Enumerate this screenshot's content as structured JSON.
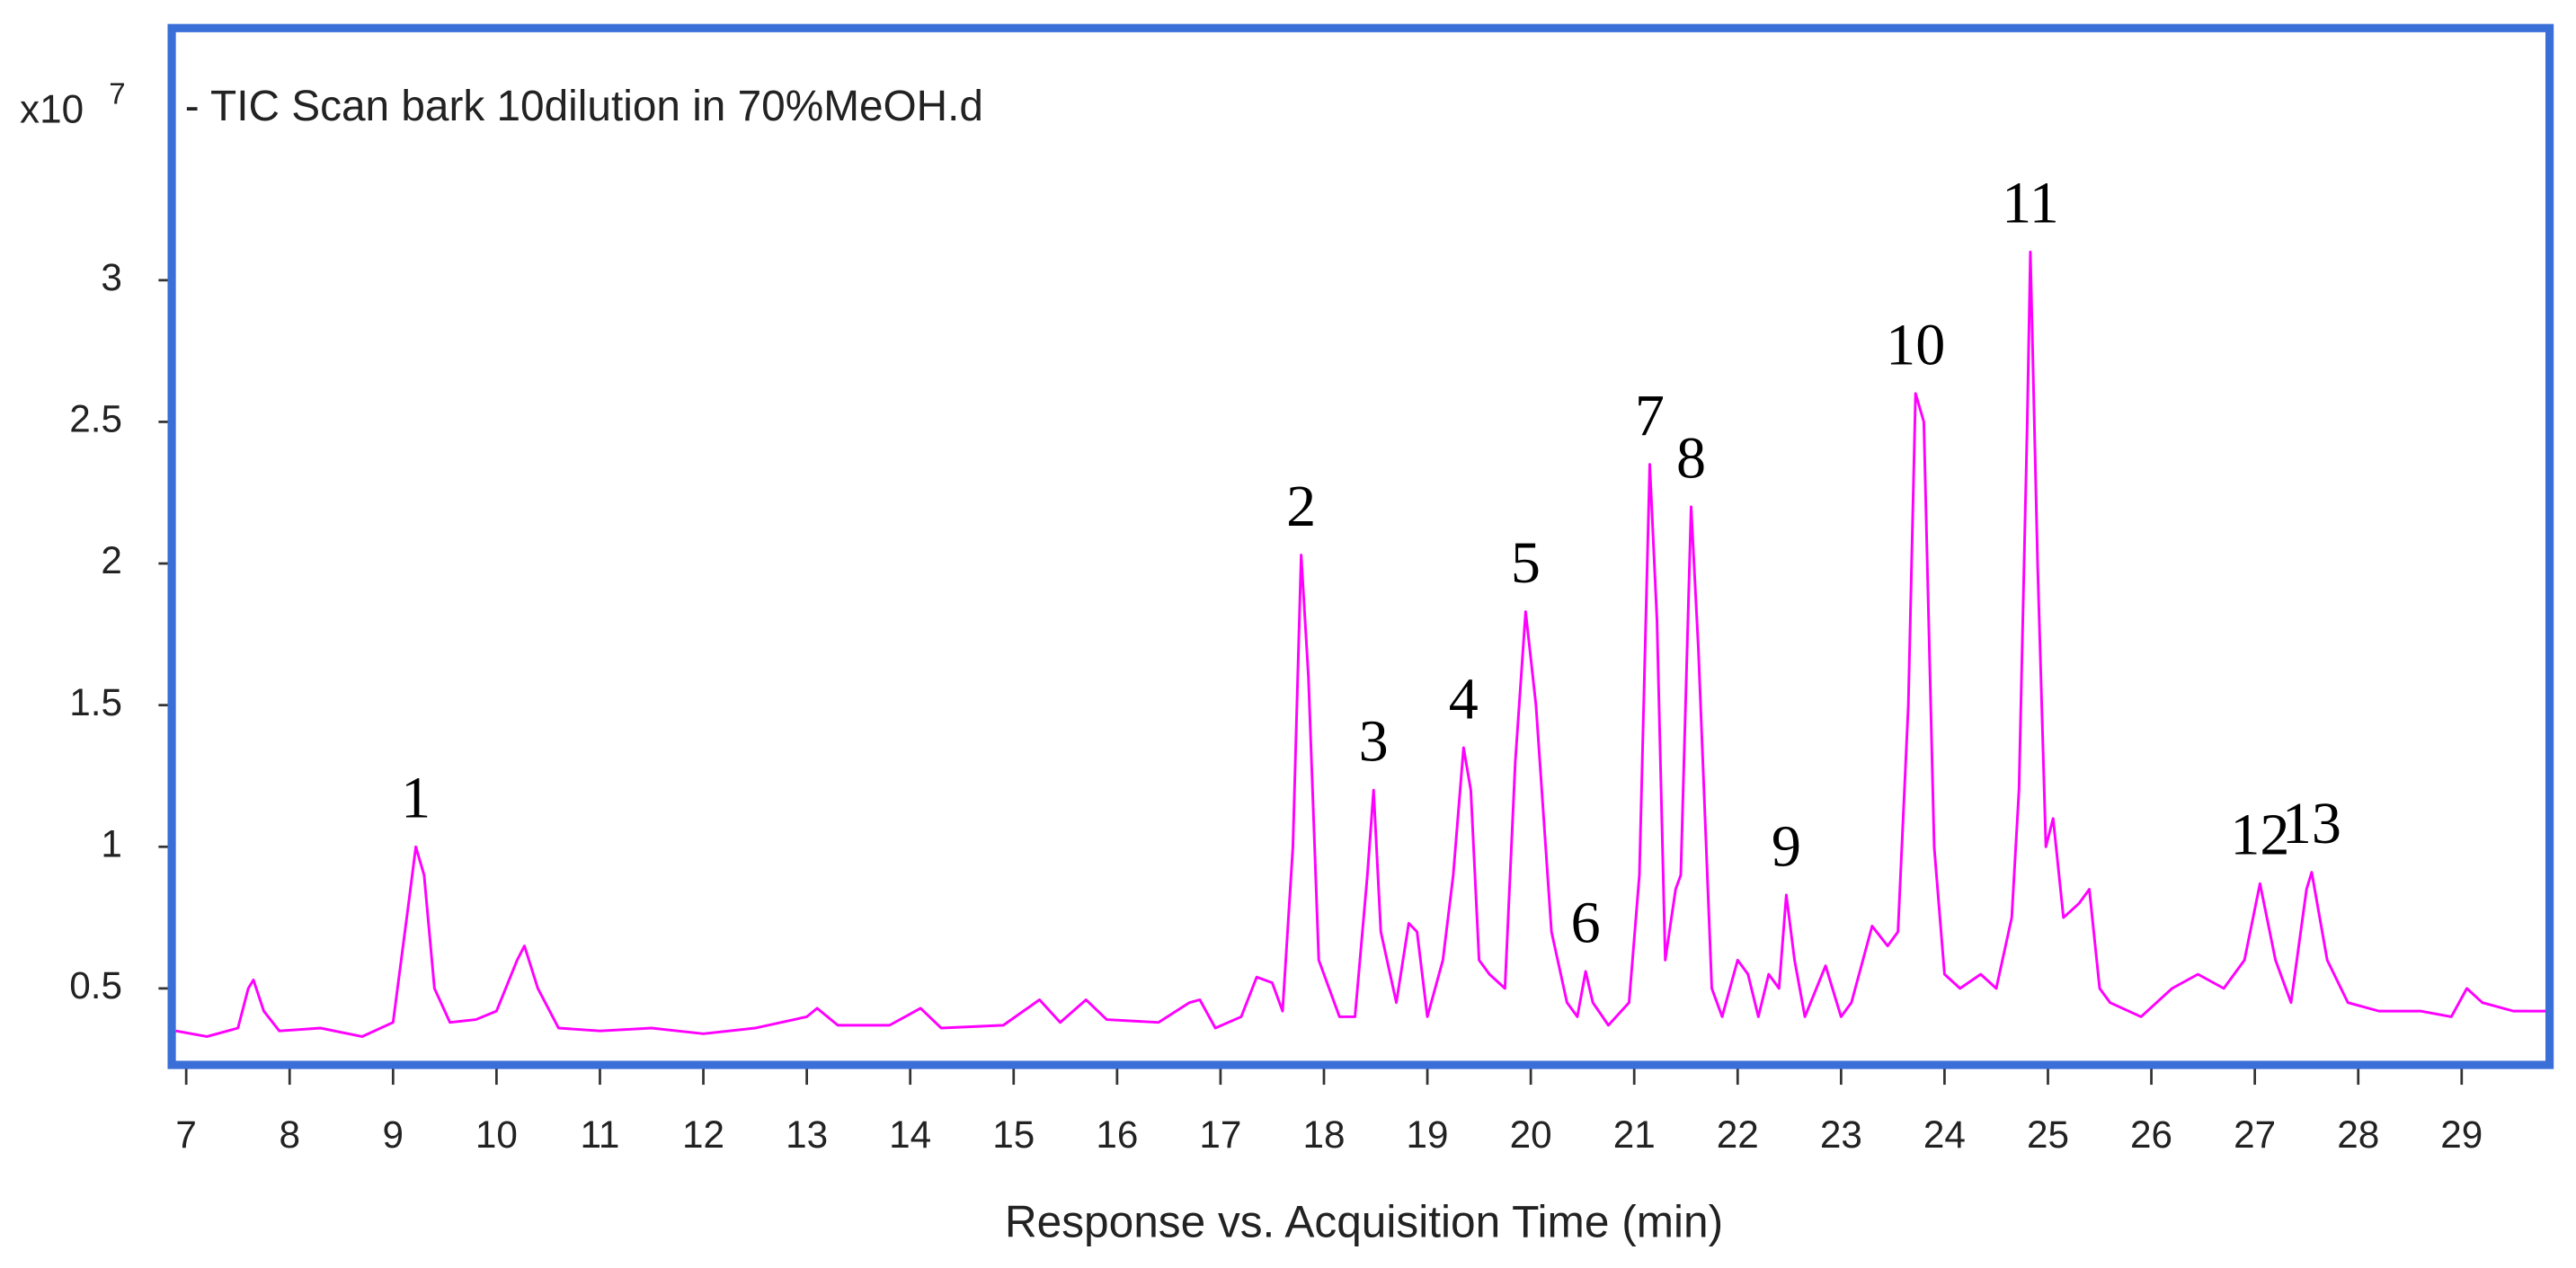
{
  "chart_data": {
    "type": "line",
    "title": "- TIC Scan bark 10dilution in 70%MeOH.d",
    "y_multiplier": {
      "base": "x10",
      "exponent": "7"
    },
    "x_label": "Response vs. Acquisition Time (min)",
    "xlim": [
      6.86,
      29.85
    ],
    "ylim": [
      0.23,
      3.89
    ],
    "xticks": [
      7,
      8,
      9,
      10,
      11,
      12,
      13,
      14,
      15,
      16,
      17,
      18,
      19,
      20,
      21,
      22,
      23,
      24,
      25,
      26,
      27,
      28,
      29
    ],
    "yticks": [
      0.5,
      1,
      1.5,
      2,
      2.5,
      3
    ],
    "frame_color": "#3a6fd8",
    "x": [
      6.9,
      7.2,
      7.5,
      7.6,
      7.65,
      7.75,
      7.9,
      8.3,
      8.7,
      9.0,
      9.15,
      9.22,
      9.3,
      9.4,
      9.55,
      9.8,
      10.0,
      10.2,
      10.27,
      10.4,
      10.6,
      11.0,
      11.5,
      12.0,
      12.5,
      13.0,
      13.1,
      13.3,
      13.8,
      14.1,
      14.3,
      14.9,
      15.25,
      15.45,
      15.7,
      15.9,
      16.4,
      16.7,
      16.8,
      16.95,
      17.2,
      17.35,
      17.5,
      17.6,
      17.7,
      17.78,
      17.85,
      17.95,
      18.05,
      18.15,
      18.3,
      18.42,
      18.48,
      18.55,
      18.7,
      18.82,
      18.9,
      19.0,
      19.15,
      19.25,
      19.35,
      19.42,
      19.5,
      19.6,
      19.75,
      19.85,
      19.95,
      20.05,
      20.2,
      20.35,
      20.45,
      20.53,
      20.6,
      20.75,
      20.95,
      21.05,
      21.15,
      21.22,
      21.3,
      21.4,
      21.45,
      21.55,
      21.62,
      21.75,
      21.85,
      22.0,
      22.1,
      22.2,
      22.3,
      22.4,
      22.47,
      22.55,
      22.65,
      22.85,
      23.0,
      23.1,
      23.3,
      23.45,
      23.55,
      23.65,
      23.72,
      23.8,
      23.9,
      24.0,
      24.15,
      24.35,
      24.5,
      24.65,
      24.72,
      24.8,
      24.83,
      24.9,
      24.98,
      25.05,
      25.15,
      25.3,
      25.4,
      25.5,
      25.6,
      25.9,
      26.2,
      26.45,
      26.7,
      26.9,
      27.05,
      27.2,
      27.35,
      27.5,
      27.55,
      27.7,
      27.9,
      28.2,
      28.6,
      28.9,
      29.05,
      29.2,
      29.5,
      29.85
    ],
    "series": [
      {
        "name": "TIC",
        "color": "#ff00ff",
        "values": [
          0.35,
          0.33,
          0.36,
          0.5,
          0.53,
          0.42,
          0.35,
          0.36,
          0.33,
          0.38,
          0.8,
          1.0,
          0.9,
          0.5,
          0.38,
          0.39,
          0.42,
          0.6,
          0.65,
          0.5,
          0.36,
          0.35,
          0.36,
          0.34,
          0.36,
          0.4,
          0.43,
          0.37,
          0.37,
          0.43,
          0.36,
          0.37,
          0.46,
          0.38,
          0.46,
          0.39,
          0.38,
          0.45,
          0.46,
          0.36,
          0.4,
          0.54,
          0.52,
          0.42,
          1.0,
          2.03,
          1.6,
          0.6,
          0.5,
          0.4,
          0.4,
          0.9,
          1.2,
          0.7,
          0.45,
          0.73,
          0.7,
          0.4,
          0.6,
          0.9,
          1.35,
          1.2,
          0.6,
          0.55,
          0.5,
          1.3,
          1.83,
          1.5,
          0.7,
          0.45,
          0.4,
          0.56,
          0.45,
          0.37,
          0.45,
          0.9,
          2.35,
          1.8,
          0.6,
          0.85,
          0.9,
          2.2,
          1.7,
          0.5,
          0.4,
          0.6,
          0.55,
          0.4,
          0.55,
          0.5,
          0.83,
          0.6,
          0.4,
          0.58,
          0.4,
          0.45,
          0.72,
          0.65,
          0.7,
          1.5,
          2.6,
          2.5,
          1.0,
          0.55,
          0.5,
          0.55,
          0.5,
          0.75,
          1.2,
          2.5,
          3.1,
          2.0,
          1.0,
          1.1,
          0.75,
          0.8,
          0.85,
          0.5,
          0.45,
          0.4,
          0.5,
          0.55,
          0.5,
          0.6,
          0.87,
          0.6,
          0.45,
          0.85,
          0.91,
          0.6,
          0.45,
          0.42,
          0.42,
          0.4,
          0.5,
          0.45,
          0.42,
          0.42
        ]
      }
    ],
    "peak_labels": [
      {
        "label": "1",
        "x": 9.22,
        "y": 1.0
      },
      {
        "label": "2",
        "x": 17.78,
        "y": 2.03
      },
      {
        "label": "3",
        "x": 18.48,
        "y": 1.2
      },
      {
        "label": "4",
        "x": 19.35,
        "y": 1.35
      },
      {
        "label": "5",
        "x": 19.95,
        "y": 1.83
      },
      {
        "label": "6",
        "x": 20.53,
        "y": 0.56
      },
      {
        "label": "7",
        "x": 21.15,
        "y": 2.35
      },
      {
        "label": "8",
        "x": 21.55,
        "y": 2.2
      },
      {
        "label": "9",
        "x": 22.47,
        "y": 0.83
      },
      {
        "label": "10",
        "x": 23.72,
        "y": 2.6
      },
      {
        "label": "11",
        "x": 24.83,
        "y": 3.1
      },
      {
        "label": "12",
        "x": 27.05,
        "y": 0.87
      },
      {
        "label": "13",
        "x": 27.55,
        "y": 0.91
      }
    ]
  }
}
